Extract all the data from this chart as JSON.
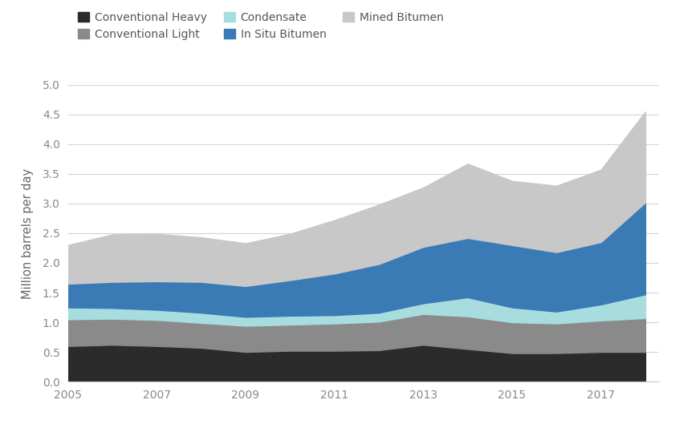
{
  "years": [
    2005,
    2006,
    2007,
    2008,
    2009,
    2010,
    2011,
    2012,
    2013,
    2014,
    2015,
    2016,
    2017,
    2018
  ],
  "conventional_heavy": [
    0.6,
    0.62,
    0.6,
    0.57,
    0.5,
    0.52,
    0.52,
    0.53,
    0.62,
    0.55,
    0.48,
    0.48,
    0.5,
    0.5
  ],
  "conventional_light": [
    0.45,
    0.44,
    0.44,
    0.42,
    0.44,
    0.44,
    0.46,
    0.48,
    0.52,
    0.55,
    0.52,
    0.5,
    0.53,
    0.57
  ],
  "condensate": [
    0.2,
    0.18,
    0.17,
    0.17,
    0.15,
    0.15,
    0.14,
    0.15,
    0.18,
    0.32,
    0.25,
    0.2,
    0.27,
    0.4
  ],
  "in_situ_bitumen": [
    0.4,
    0.44,
    0.48,
    0.52,
    0.52,
    0.6,
    0.7,
    0.82,
    0.95,
    1.0,
    1.05,
    1.0,
    1.05,
    1.55
  ],
  "mined_bitumen": [
    0.65,
    0.8,
    0.8,
    0.75,
    0.72,
    0.78,
    0.9,
    1.0,
    1.0,
    1.25,
    1.08,
    1.12,
    1.22,
    1.53
  ],
  "colors": {
    "conventional_heavy": "#2b2b2b",
    "conventional_light": "#8a8a8a",
    "condensate": "#a8dde0",
    "in_situ_bitumen": "#3a7ab5",
    "mined_bitumen": "#c8c8c8"
  },
  "labels": {
    "conventional_heavy": "Conventional Heavy",
    "conventional_light": "Conventional Light",
    "condensate": "Condensate",
    "in_situ_bitumen": "In Situ Bitumen",
    "mined_bitumen": "Mined Bitumen"
  },
  "ylabel": "Million barrels per day",
  "ylim": [
    0.0,
    5.0
  ],
  "yticks": [
    0.0,
    0.5,
    1.0,
    1.5,
    2.0,
    2.5,
    3.0,
    3.5,
    4.0,
    4.5,
    5.0
  ],
  "xticks": [
    2005,
    2007,
    2009,
    2011,
    2013,
    2015,
    2017
  ],
  "background_color": "#ffffff",
  "grid_color": "#d5d5d5"
}
